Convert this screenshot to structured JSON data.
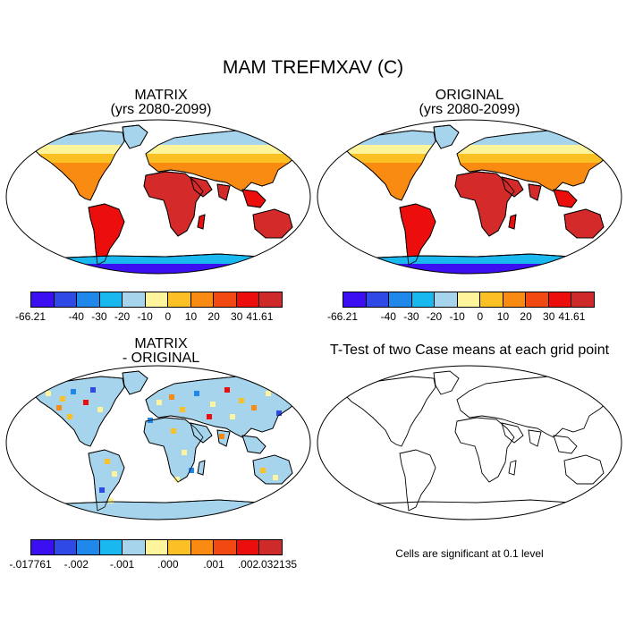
{
  "title": "MAM TREFMXAV (C)",
  "panels": {
    "top_left": {
      "line1": "MATRIX",
      "line2": "(yrs 2080-2099)"
    },
    "top_right": {
      "line1": "ORIGINAL",
      "line2": "(yrs 2080-2099)"
    },
    "bottom_left": {
      "line1": "MATRIX",
      "line2": "- ORIGINAL"
    },
    "bottom_right": {
      "line1": "T-Test of two Case means at each grid point"
    }
  },
  "colorbar_top": {
    "colors": [
      "#3b0ff2",
      "#2f49e6",
      "#1f88ea",
      "#19b8ef",
      "#a5d4ec",
      "#fdf49b",
      "#fbc124",
      "#f98a12",
      "#f24912",
      "#ec0d0d",
      "#ce2a2a"
    ],
    "labels": [
      "-66.21",
      "-40",
      "-30",
      "-20",
      "-10",
      "0",
      "10",
      "20",
      "30",
      "41.61"
    ]
  },
  "colorbar_diff": {
    "colors": [
      "#3b0ff2",
      "#2f49e6",
      "#1f88ea",
      "#19b8ef",
      "#a5d4ec",
      "#fdf49b",
      "#fbc124",
      "#f98a12",
      "#f24912",
      "#ec0d0d",
      "#ce2a2a"
    ],
    "labels": [
      "-.017761",
      "-.002",
      "-.001",
      ".000",
      ".001",
      ".002",
      ".032135"
    ]
  },
  "significance_note": "Cells are significant at 0.1 level",
  "map_colors": {
    "ocean": "#ffffff",
    "tropics": "#d42a2a",
    "hot": "#ec0d0d",
    "warm": "#f98a12",
    "mild": "#fbc124",
    "cool": "#fdf49b",
    "cold": "#a5d4ec",
    "antarctica_edge": "#19b8ef",
    "antarctica_core": "#3b0ff2",
    "diff_base": "#a5d4ec",
    "diff_cells": [
      "#fdf49b",
      "#fbc124",
      "#1f88ea",
      "#2f49e6",
      "#ec0d0d",
      "#f98a12"
    ]
  }
}
